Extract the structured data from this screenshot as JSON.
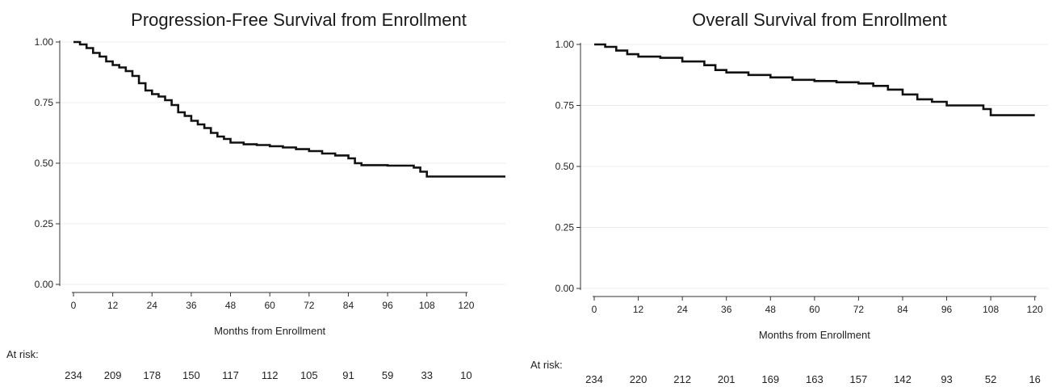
{
  "chart_data": [
    {
      "type": "line",
      "title": "Progression-Free Survival from Enrollment",
      "xlabel": "Months from Enrollment",
      "ylabel": "",
      "xlim": [
        0,
        132
      ],
      "ylim": [
        0,
        1
      ],
      "x_ticks": [
        "0",
        "12",
        "24",
        "36",
        "48",
        "60",
        "72",
        "84",
        "96",
        "108",
        "120"
      ],
      "y_ticks": [
        "0.00",
        "0.25",
        "0.50",
        "0.75",
        "1.00"
      ],
      "grid": "horizontal",
      "series": [
        {
          "x": [
            0,
            2,
            4,
            6,
            8,
            10,
            12,
            14,
            16,
            18,
            20,
            22,
            24,
            26,
            28,
            30,
            32,
            34,
            36,
            38,
            40,
            42,
            44,
            46,
            48,
            52,
            56,
            60,
            64,
            68,
            72,
            76,
            80,
            84,
            86,
            88,
            92,
            96,
            100,
            104,
            106,
            108,
            132
          ],
          "y": [
            1.0,
            0.99,
            0.975,
            0.955,
            0.94,
            0.92,
            0.905,
            0.895,
            0.88,
            0.86,
            0.83,
            0.8,
            0.785,
            0.775,
            0.76,
            0.74,
            0.71,
            0.695,
            0.675,
            0.66,
            0.645,
            0.625,
            0.61,
            0.6,
            0.585,
            0.578,
            0.575,
            0.57,
            0.565,
            0.558,
            0.55,
            0.54,
            0.532,
            0.52,
            0.5,
            0.492,
            0.492,
            0.49,
            0.49,
            0.482,
            0.465,
            0.445,
            0.445
          ]
        }
      ],
      "at_risk_label": "At risk:",
      "at_risk": [
        "234",
        "209",
        "178",
        "150",
        "117",
        "112",
        "105",
        "91",
        "59",
        "33",
        "10"
      ]
    },
    {
      "type": "line",
      "title": "Overall Survival from Enrollment",
      "xlabel": "Months from Enrollment",
      "ylabel": "",
      "xlim": [
        0,
        120
      ],
      "ylim": [
        0,
        1
      ],
      "x_ticks": [
        "0",
        "12",
        "24",
        "36",
        "48",
        "60",
        "72",
        "84",
        "96",
        "108",
        "120"
      ],
      "y_ticks": [
        "0.00",
        "0.25",
        "0.50",
        "0.75",
        "1.00"
      ],
      "grid": "horizontal",
      "series": [
        {
          "x": [
            0,
            3,
            6,
            9,
            12,
            18,
            24,
            30,
            33,
            36,
            42,
            48,
            54,
            60,
            66,
            72,
            76,
            80,
            84,
            88,
            92,
            96,
            100,
            104,
            106,
            108,
            120
          ],
          "y": [
            1.0,
            0.99,
            0.975,
            0.96,
            0.95,
            0.945,
            0.93,
            0.915,
            0.895,
            0.885,
            0.875,
            0.865,
            0.855,
            0.85,
            0.845,
            0.84,
            0.83,
            0.815,
            0.795,
            0.775,
            0.765,
            0.75,
            0.75,
            0.75,
            0.735,
            0.71,
            0.71
          ]
        }
      ],
      "at_risk_label": "At risk:",
      "at_risk": [
        "234",
        "220",
        "212",
        "201",
        "169",
        "163",
        "157",
        "142",
        "93",
        "52",
        "16"
      ]
    }
  ]
}
